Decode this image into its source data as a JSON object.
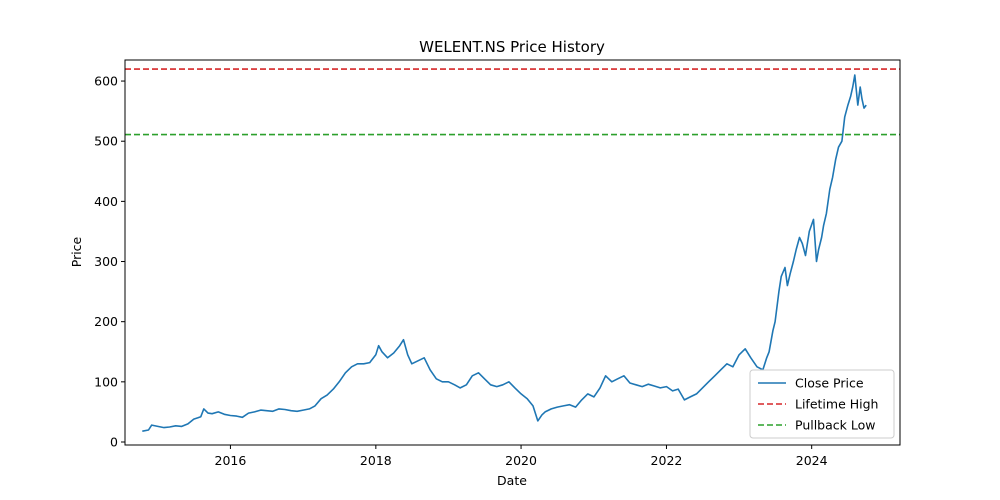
{
  "chart_data": {
    "type": "line",
    "title": "WELENT.NS Price History",
    "xlabel": "Date",
    "ylabel": "Price",
    "xlim": [
      "2014-07-20",
      "2025-03-20"
    ],
    "ylim": [
      -5,
      635
    ],
    "x_ticks": [
      "2016",
      "2018",
      "2020",
      "2022",
      "2024"
    ],
    "y_ticks": [
      0,
      100,
      200,
      300,
      400,
      500,
      600
    ],
    "grid": false,
    "legend_placement": "lower-right",
    "colors": {
      "close": "#1f77b4",
      "high": "#d62728",
      "low": "#2ca02c"
    },
    "series": [
      {
        "name": "Close Price",
        "style": "solid",
        "color": "#1f77b4",
        "x": [
          "2014-10-15",
          "2014-11-15",
          "2014-12-01",
          "2015-01-01",
          "2015-02-01",
          "2015-03-01",
          "2015-04-01",
          "2015-05-01",
          "2015-06-01",
          "2015-07-01",
          "2015-07-20",
          "2015-08-05",
          "2015-08-20",
          "2015-09-10",
          "2015-10-01",
          "2015-11-01",
          "2015-12-01",
          "2016-01-01",
          "2016-02-01",
          "2016-03-01",
          "2016-04-01",
          "2016-05-01",
          "2016-06-01",
          "2016-07-01",
          "2016-08-01",
          "2016-09-01",
          "2016-10-01",
          "2016-11-01",
          "2016-12-01",
          "2017-01-01",
          "2017-02-01",
          "2017-03-01",
          "2017-04-01",
          "2017-05-01",
          "2017-06-01",
          "2017-07-01",
          "2017-08-01",
          "2017-09-01",
          "2017-10-01",
          "2017-11-01",
          "2017-12-01",
          "2018-01-01",
          "2018-01-15",
          "2018-02-01",
          "2018-02-15",
          "2018-03-01",
          "2018-04-01",
          "2018-05-01",
          "2018-05-20",
          "2018-06-10",
          "2018-07-01",
          "2018-08-01",
          "2018-09-01",
          "2018-10-01",
          "2018-11-01",
          "2018-12-01",
          "2019-01-01",
          "2019-02-01",
          "2019-03-01",
          "2019-04-01",
          "2019-05-01",
          "2019-06-01",
          "2019-07-01",
          "2019-08-01",
          "2019-09-01",
          "2019-10-01",
          "2019-11-01",
          "2019-12-01",
          "2020-01-01",
          "2020-02-01",
          "2020-03-01",
          "2020-03-25",
          "2020-04-15",
          "2020-05-01",
          "2020-06-01",
          "2020-07-01",
          "2020-08-01",
          "2020-09-01",
          "2020-10-01",
          "2020-11-01",
          "2020-12-01",
          "2021-01-01",
          "2021-02-01",
          "2021-03-01",
          "2021-04-01",
          "2021-05-01",
          "2021-06-01",
          "2021-07-01",
          "2021-08-01",
          "2021-09-01",
          "2021-10-01",
          "2021-11-01",
          "2021-12-01",
          "2022-01-01",
          "2022-02-01",
          "2022-03-01",
          "2022-04-01",
          "2022-05-01",
          "2022-06-01",
          "2022-07-01",
          "2022-08-01",
          "2022-09-01",
          "2022-10-01",
          "2022-11-01",
          "2022-12-01",
          "2023-01-01",
          "2023-02-01",
          "2023-03-01",
          "2023-04-01",
          "2023-05-01",
          "2023-05-20",
          "2023-06-01",
          "2023-06-20",
          "2023-07-01",
          "2023-07-20",
          "2023-08-01",
          "2023-08-20",
          "2023-09-01",
          "2023-09-15",
          "2023-10-01",
          "2023-10-15",
          "2023-11-01",
          "2023-11-15",
          "2023-12-01",
          "2023-12-20",
          "2024-01-10",
          "2024-01-25",
          "2024-02-05",
          "2024-02-20",
          "2024-03-01",
          "2024-03-15",
          "2024-04-01",
          "2024-04-15",
          "2024-05-01",
          "2024-05-15",
          "2024-06-01",
          "2024-06-15",
          "2024-07-01",
          "2024-07-15",
          "2024-07-25",
          "2024-08-05",
          "2024-08-20",
          "2024-09-01",
          "2024-09-10",
          "2024-09-20",
          "2024-10-01"
        ],
        "y": [
          18,
          20,
          28,
          26,
          24,
          25,
          27,
          26,
          30,
          38,
          40,
          42,
          55,
          48,
          47,
          50,
          46,
          44,
          43,
          41,
          48,
          50,
          53,
          52,
          51,
          55,
          54,
          52,
          51,
          53,
          55,
          60,
          72,
          78,
          88,
          100,
          115,
          125,
          130,
          130,
          132,
          145,
          160,
          150,
          145,
          140,
          148,
          160,
          170,
          145,
          130,
          135,
          140,
          120,
          105,
          100,
          100,
          95,
          90,
          95,
          110,
          115,
          105,
          95,
          92,
          95,
          100,
          90,
          80,
          72,
          60,
          35,
          45,
          50,
          55,
          58,
          60,
          62,
          58,
          70,
          80,
          75,
          90,
          110,
          100,
          105,
          110,
          98,
          95,
          92,
          96,
          93,
          90,
          92,
          85,
          88,
          70,
          75,
          80,
          90,
          100,
          110,
          120,
          130,
          125,
          145,
          155,
          140,
          125,
          120,
          140,
          150,
          185,
          200,
          250,
          275,
          290,
          260,
          280,
          300,
          320,
          340,
          330,
          310,
          350,
          370,
          300,
          320,
          340,
          360,
          380,
          420,
          440,
          470,
          490,
          500,
          540,
          560,
          575,
          590,
          610,
          560,
          590,
          570,
          555,
          560
        ]
      },
      {
        "name": "Lifetime High",
        "style": "dashed",
        "color": "#d62728",
        "value": 620
      },
      {
        "name": "Pullback Low",
        "style": "dashed",
        "color": "#2ca02c",
        "value": 511
      }
    ]
  }
}
